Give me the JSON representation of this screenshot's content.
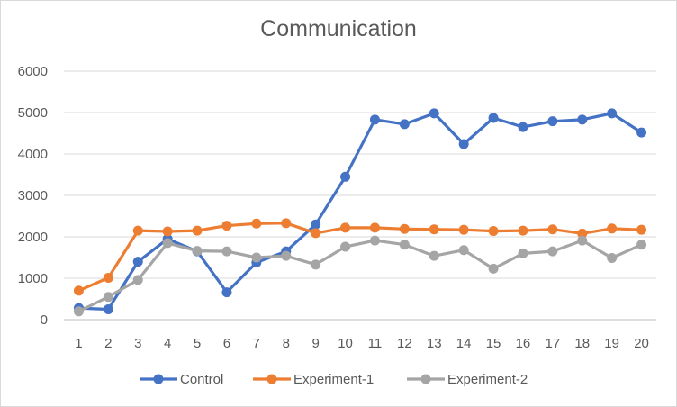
{
  "chart_data": {
    "type": "line",
    "title": "Communication",
    "xlabel": "",
    "ylabel": "",
    "ylim": [
      0,
      6000
    ],
    "yticks": [
      0,
      1000,
      2000,
      3000,
      4000,
      5000,
      6000
    ],
    "categories": [
      "1",
      "2",
      "3",
      "4",
      "5",
      "6",
      "7",
      "8",
      "9",
      "10",
      "11",
      "12",
      "13",
      "14",
      "15",
      "16",
      "17",
      "18",
      "19",
      "20"
    ],
    "grid": true,
    "legend_position": "bottom",
    "series": [
      {
        "name": "Control",
        "color": "#4472C4",
        "values": [
          280,
          250,
          1400,
          1950,
          1650,
          660,
          1380,
          1650,
          2300,
          3450,
          4830,
          4720,
          4980,
          4240,
          4870,
          4650,
          4790,
          4830,
          4980,
          4520
        ]
      },
      {
        "name": "Experiment-1",
        "color": "#ED7D31",
        "values": [
          700,
          1010,
          2150,
          2130,
          2150,
          2270,
          2320,
          2330,
          2090,
          2220,
          2220,
          2190,
          2180,
          2170,
          2140,
          2150,
          2180,
          2080,
          2200,
          2170
        ]
      },
      {
        "name": "Experiment-2",
        "color": "#A5A5A5",
        "values": [
          200,
          550,
          960,
          1850,
          1660,
          1650,
          1500,
          1540,
          1330,
          1760,
          1910,
          1810,
          1540,
          1680,
          1230,
          1600,
          1650,
          1910,
          1490,
          1810
        ]
      }
    ]
  }
}
